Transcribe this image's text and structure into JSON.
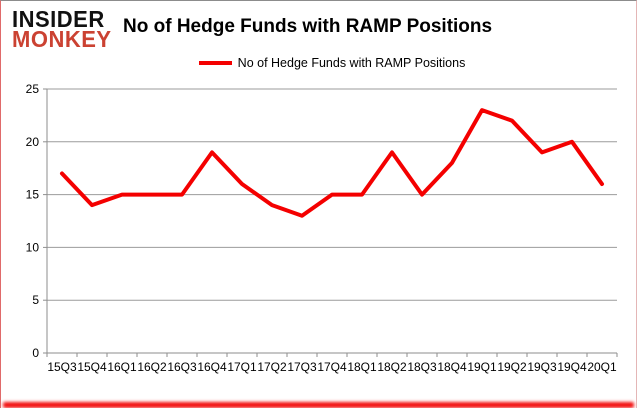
{
  "branding": {
    "name_line1": "INSIDER",
    "name_line2": "MONKEY",
    "accent_color": "#cb4232"
  },
  "header": {
    "title": "No of Hedge Funds with RAMP Positions"
  },
  "legend": {
    "label": "No of Hedge Funds with RAMP Positions",
    "swatch_color": "#f40000"
  },
  "chart_data": {
    "type": "line",
    "title": "No of Hedge Funds with RAMP Positions",
    "categories": [
      "15Q3",
      "15Q4",
      "16Q1",
      "16Q2",
      "16Q3",
      "16Q4",
      "17Q1",
      "17Q2",
      "17Q3",
      "17Q4",
      "18Q1",
      "18Q2",
      "18Q3",
      "18Q4",
      "19Q1",
      "19Q2",
      "19Q3",
      "19Q4",
      "20Q1"
    ],
    "series": [
      {
        "name": "No of Hedge Funds with RAMP Positions",
        "color": "#f40000",
        "values": [
          17,
          14,
          15,
          15,
          15,
          19,
          16,
          14,
          13,
          15,
          15,
          19,
          15,
          18,
          23,
          22,
          19,
          20,
          16
        ]
      }
    ],
    "xlabel": "",
    "ylabel": "",
    "ylim": [
      0,
      25
    ],
    "yticks": [
      0,
      5,
      10,
      15,
      20,
      25
    ],
    "grid": true,
    "gridline_color": "#9b9b9b",
    "axis_color": "#8e8e8e",
    "legend_position": "top-center"
  }
}
